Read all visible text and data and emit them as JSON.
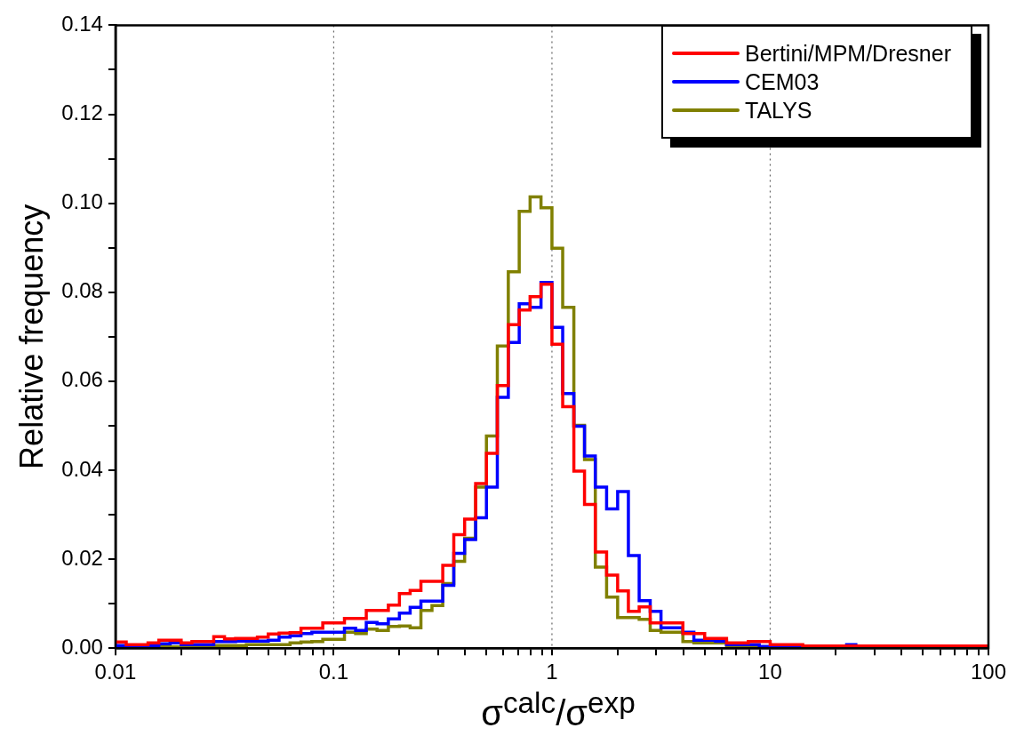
{
  "chart_data": {
    "type": "step",
    "xlabel": "σ$^{calc}$/σ$^{exp}$",
    "ylabel": "Relative frequency",
    "log": "x",
    "grid": "x",
    "legend": "top right",
    "x": [
      0.01,
      0.0112,
      0.0126,
      0.0141,
      0.0158,
      0.0178,
      0.02,
      0.0224,
      0.0251,
      0.0282,
      0.0316,
      0.0355,
      0.0398,
      0.0447,
      0.0501,
      0.0562,
      0.0631,
      0.0708,
      0.0794,
      0.0891,
      0.1,
      0.112,
      0.126,
      0.141,
      0.158,
      0.178,
      0.2,
      0.224,
      0.251,
      0.282,
      0.316,
      0.355,
      0.398,
      0.447,
      0.501,
      0.562,
      0.631,
      0.708,
      0.794,
      0.891,
      1.0,
      1.12,
      1.26,
      1.41,
      1.58,
      1.78,
      2.0,
      2.24,
      2.51,
      2.82,
      3.16,
      3.55,
      3.98,
      4.47,
      5.01,
      5.62,
      6.31,
      7.08,
      7.94,
      8.91,
      10.0,
      11.2,
      12.6,
      14.1,
      15.8,
      17.8,
      20.0,
      22.4,
      25.1,
      28.2,
      31.6,
      35.5,
      39.8,
      44.7,
      50.1,
      56.2,
      63.1,
      70.8,
      79.4,
      89.1,
      100
    ],
    "series": [
      {
        "name": "Bertini/MPM/Dresner",
        "color": "#ff0000",
        "values": [
          0.0014,
          0.0014,
          0.0008,
          0.0008,
          0.0012,
          0.0018,
          0.0018,
          0.0012,
          0.0015,
          0.0015,
          0.0026,
          0.0021,
          0.0022,
          0.0022,
          0.0025,
          0.0032,
          0.0034,
          0.0035,
          0.0045,
          0.0045,
          0.0057,
          0.0057,
          0.0067,
          0.0067,
          0.0085,
          0.0085,
          0.0097,
          0.0123,
          0.013,
          0.015,
          0.015,
          0.0186,
          0.0255,
          0.029,
          0.037,
          0.0438,
          0.059,
          0.0727,
          0.076,
          0.079,
          0.0818,
          0.0683,
          0.0543,
          0.0398,
          0.0323,
          0.0216,
          0.0164,
          0.0129,
          0.0083,
          0.0093,
          0.0057,
          0.0057,
          0.0057,
          0.0033,
          0.0033,
          0.0022,
          0.0022,
          0.0012,
          0.0012,
          0.0015,
          0.0015,
          0.0008,
          0.0008,
          0.0008,
          0.0005,
          0.0005,
          0.0005,
          0.0005,
          0.0005,
          0.0005,
          0.0005,
          0.0005,
          0.0005,
          0.0005,
          0.0005,
          0.0005,
          0.0005,
          0.0005,
          0.0005,
          0.0005,
          0.0005
        ]
      },
      {
        "name": "CEM03",
        "color": "#0000ff",
        "values": [
          0.0006,
          0.0006,
          0.0006,
          0.0006,
          0.0006,
          0.001,
          0.0012,
          0.0008,
          0.0008,
          0.0008,
          0.0015,
          0.0015,
          0.0016,
          0.0016,
          0.0016,
          0.0018,
          0.0025,
          0.0028,
          0.0033,
          0.0036,
          0.0036,
          0.0036,
          0.0045,
          0.004,
          0.0058,
          0.0055,
          0.0066,
          0.0079,
          0.0092,
          0.0106,
          0.0106,
          0.0141,
          0.0213,
          0.0244,
          0.0293,
          0.0362,
          0.0564,
          0.0687,
          0.0774,
          0.0766,
          0.0822,
          0.0721,
          0.0572,
          0.0499,
          0.0432,
          0.0362,
          0.0313,
          0.0352,
          0.0208,
          0.0107,
          0.0083,
          0.0046,
          0.0046,
          0.0036,
          0.0018,
          0.0018,
          0.0016,
          0.0008,
          0.0008,
          0.0008,
          0.0004,
          0.0004,
          0.0004,
          0.0004,
          null,
          null,
          null,
          0.0004,
          0.0008,
          null,
          null,
          null,
          null,
          null,
          null,
          null,
          null,
          null,
          null,
          null,
          null
        ]
      },
      {
        "name": "TALYS",
        "color": "#808000",
        "values": [
          null,
          null,
          null,
          0.0003,
          0.0003,
          0.0003,
          0.0003,
          0.0003,
          0.0003,
          0.0006,
          0.0006,
          0.0006,
          0.0006,
          0.0008,
          0.0008,
          0.0008,
          0.0008,
          0.0012,
          0.0014,
          0.0015,
          0.002,
          0.002,
          0.0036,
          0.0033,
          0.0043,
          0.004,
          0.0049,
          0.005,
          0.0046,
          0.0085,
          0.0096,
          0.0145,
          0.0195,
          0.0247,
          0.0362,
          0.0477,
          0.0679,
          0.0846,
          0.0982,
          0.1014,
          0.099,
          0.0899,
          0.0766,
          0.0501,
          0.0424,
          0.0182,
          0.0115,
          0.0069,
          0.0069,
          0.0065,
          0.004,
          0.0036,
          0.0036,
          0.0015,
          0.0012,
          0.0012,
          0.0012,
          0.0006,
          0.0006,
          0.0006,
          0.0003,
          null,
          null,
          null,
          null,
          null,
          null,
          null,
          null,
          null,
          null,
          null,
          null,
          null,
          null,
          null,
          null,
          null,
          null,
          null,
          null
        ]
      }
    ],
    "xlim": [
      0.01,
      100
    ],
    "xticks": [
      0.01,
      {
        "value": 0.02,
        "label": null
      },
      {
        "value": 0.03,
        "label": null
      },
      {
        "value": 0.04,
        "label": null
      },
      {
        "value": 0.05,
        "label": null
      },
      {
        "value": 0.06,
        "label": null
      },
      {
        "value": 0.07,
        "label": null
      },
      {
        "value": 0.08,
        "label": null
      },
      {
        "value": 0.09,
        "label": null
      },
      0.1,
      {
        "value": 0.2,
        "label": null
      },
      {
        "value": 0.3,
        "label": null
      },
      {
        "value": 0.4,
        "label": null
      },
      {
        "value": 0.5,
        "label": null
      },
      {
        "value": 0.6,
        "label": null
      },
      {
        "value": 0.7,
        "label": null
      },
      {
        "value": 0.8,
        "label": null
      },
      {
        "value": 0.9,
        "label": null
      },
      1,
      {
        "value": 2,
        "label": null
      },
      {
        "value": 3,
        "label": null
      },
      {
        "value": 4,
        "label": null
      },
      {
        "value": 5,
        "label": null
      },
      {
        "value": 6,
        "label": null
      },
      {
        "value": 7,
        "label": null
      },
      {
        "value": 8,
        "label": null
      },
      {
        "value": 9,
        "label": null
      },
      10,
      {
        "value": 20,
        "label": null
      },
      {
        "value": 30,
        "label": null
      },
      {
        "value": 40,
        "label": null
      },
      {
        "value": 50,
        "label": null
      },
      {
        "value": 60,
        "label": null
      },
      {
        "value": 70,
        "label": null
      },
      {
        "value": 80,
        "label": null
      },
      {
        "value": 90,
        "label": null
      },
      100
    ],
    "ylim": [
      0,
      0.14
    ],
    "yticks": [
      {
        "value": 0,
        "label": "0.00"
      },
      {
        "value": 0.01,
        "label": null
      },
      {
        "value": 0.02,
        "label": "0.02"
      },
      {
        "value": 0.03,
        "label": null
      },
      {
        "value": 0.04,
        "label": "0.04"
      },
      {
        "value": 0.05,
        "label": null
      },
      {
        "value": 0.06,
        "label": "0.06"
      },
      {
        "value": 0.07,
        "label": null
      },
      {
        "value": 0.08,
        "label": "0.08"
      },
      {
        "value": 0.09,
        "label": null
      },
      {
        "value": 0.1,
        "label": "0.10"
      },
      {
        "value": 0.11,
        "label": null
      },
      {
        "value": 0.12,
        "label": "0.12"
      },
      {
        "value": 0.13,
        "label": null
      },
      {
        "value": 0.14,
        "label": "0.14"
      }
    ]
  }
}
